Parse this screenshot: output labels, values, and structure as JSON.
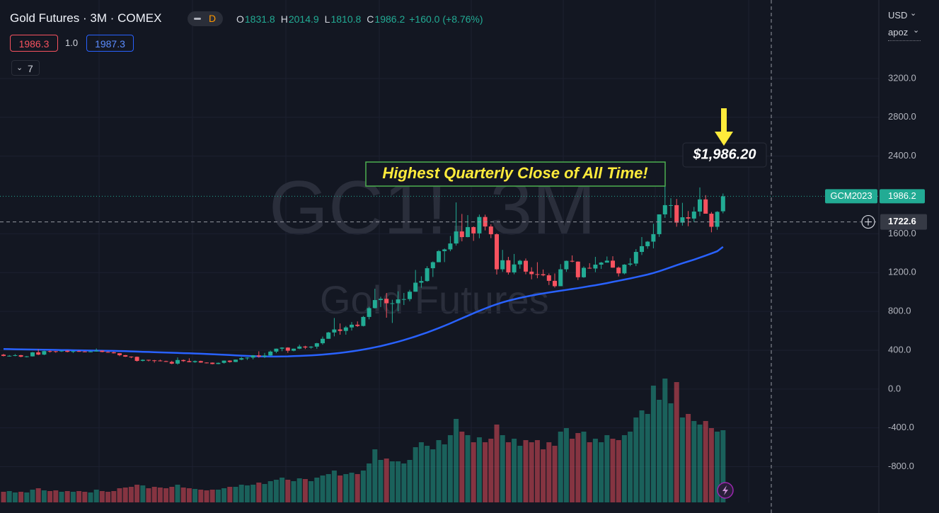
{
  "chart_data": {
    "type": "candlestick",
    "title": "Gold Futures · 3M · COMEX",
    "interval_badge": "D",
    "ohlc_labels": [
      "O",
      "H",
      "L",
      "C"
    ],
    "change": "+160.0 (+8.76%)",
    "bid": "1986.3",
    "spread": "1.0",
    "ask": "1987.3",
    "indicators_count": "7",
    "currency": "USD",
    "scale_mode": "apoz",
    "watermark": "GC1!, 3M",
    "watermark_subtitle": "Gold Futures",
    "annotation": "Highest Quarterly Close of All Time!",
    "price_callout": "$1,986.20",
    "symbol_label": "GCM2023",
    "crosshair": 1722.6,
    "up_color": "#22ab94",
    "down_color": "#f7525f",
    "ma_color": "#2962ff",
    "ylim": [
      -1168,
      4009
    ],
    "yticks": [
      {
        "value": 3200,
        "label": "3200.0"
      },
      {
        "value": 2800,
        "label": "2800.0"
      },
      {
        "value": 2400,
        "label": "2400.0"
      },
      {
        "value": 1600,
        "label": "1600.0"
      },
      {
        "value": 1200,
        "label": "1200.0"
      },
      {
        "value": 800,
        "label": "800.0"
      },
      {
        "value": 400,
        "label": "400.0"
      },
      {
        "value": 0,
        "label": "0.0"
      },
      {
        "value": -400,
        "label": "-400.0"
      },
      {
        "value": -800,
        "label": "-800.0"
      }
    ],
    "grid": true,
    "ohlc": [
      [
        354,
        362,
        336,
        341
      ],
      [
        341,
        350,
        334,
        343
      ],
      [
        343,
        360,
        338,
        349
      ],
      [
        349,
        352,
        328,
        333
      ],
      [
        333,
        340,
        326,
        337
      ],
      [
        337,
        382,
        335,
        378
      ],
      [
        378,
        409,
        350,
        355
      ],
      [
        355,
        395,
        349,
        391
      ],
      [
        391,
        398,
        376,
        390
      ],
      [
        390,
        392,
        374,
        388
      ],
      [
        388,
        397,
        382,
        395
      ],
      [
        395,
        398,
        378,
        383
      ],
      [
        383,
        394,
        372,
        391
      ],
      [
        391,
        396,
        383,
        387
      ],
      [
        387,
        391,
        381,
        384
      ],
      [
        384,
        394,
        380,
        387
      ],
      [
        387,
        418,
        386,
        396
      ],
      [
        396,
        397,
        379,
        382
      ],
      [
        382,
        388,
        376,
        379
      ],
      [
        379,
        385,
        366,
        369
      ],
      [
        369,
        370,
        339,
        349
      ],
      [
        349,
        351,
        331,
        334
      ],
      [
        334,
        336,
        318,
        332
      ],
      [
        332,
        335,
        283,
        290
      ],
      [
        290,
        306,
        285,
        301
      ],
      [
        301,
        302,
        285,
        296
      ],
      [
        296,
        300,
        272,
        294
      ],
      [
        294,
        303,
        285,
        288
      ],
      [
        288,
        292,
        279,
        280
      ],
      [
        280,
        291,
        256,
        262
      ],
      [
        262,
        326,
        252,
        299
      ],
      [
        299,
        305,
        280,
        288
      ],
      [
        288,
        317,
        276,
        277
      ],
      [
        277,
        294,
        270,
        288
      ],
      [
        288,
        292,
        271,
        273
      ],
      [
        273,
        276,
        264,
        272
      ],
      [
        272,
        274,
        255,
        258
      ],
      [
        258,
        273,
        256,
        270
      ],
      [
        270,
        294,
        262,
        293
      ],
      [
        293,
        296,
        272,
        279
      ],
      [
        279,
        305,
        277,
        303
      ],
      [
        303,
        330,
        297,
        318
      ],
      [
        318,
        327,
        300,
        324
      ],
      [
        324,
        350,
        306,
        347
      ],
      [
        347,
        389,
        323,
        335
      ],
      [
        335,
        372,
        320,
        346
      ],
      [
        346,
        396,
        342,
        386
      ],
      [
        386,
        417,
        370,
        416
      ],
      [
        416,
        430,
        390,
        427
      ],
      [
        427,
        431,
        373,
        395
      ],
      [
        395,
        417,
        389,
        416
      ],
      [
        416,
        457,
        411,
        438
      ],
      [
        438,
        446,
        412,
        428
      ],
      [
        428,
        442,
        416,
        437
      ],
      [
        437,
        476,
        415,
        472
      ],
      [
        472,
        541,
        457,
        518
      ],
      [
        518,
        589,
        518,
        583
      ],
      [
        583,
        732,
        543,
        614
      ],
      [
        614,
        676,
        560,
        599
      ],
      [
        599,
        650,
        560,
        635
      ],
      [
        635,
        690,
        603,
        663
      ],
      [
        663,
        697,
        640,
        650
      ],
      [
        650,
        753,
        645,
        743
      ],
      [
        743,
        848,
        718,
        834
      ],
      [
        834,
        1033,
        830,
        917
      ],
      [
        917,
        951,
        845,
        930
      ],
      [
        930,
        990,
        735,
        884
      ],
      [
        884,
        920,
        681,
        884
      ],
      [
        884,
        1007,
        801,
        924
      ],
      [
        924,
        990,
        866,
        927
      ],
      [
        927,
        1022,
        905,
        1003
      ],
      [
        1003,
        1227,
        1003,
        1096
      ],
      [
        1096,
        1162,
        1044,
        1113
      ],
      [
        1113,
        1266,
        1106,
        1245
      ],
      [
        1245,
        1315,
        1155,
        1307
      ],
      [
        1307,
        1431,
        1307,
        1421
      ],
      [
        1421,
        1448,
        1308,
        1439
      ],
      [
        1439,
        1577,
        1420,
        1500
      ],
      [
        1500,
        1923,
        1478,
        1624
      ],
      [
        1624,
        1804,
        1522,
        1566
      ],
      [
        1566,
        1792,
        1564,
        1669
      ],
      [
        1669,
        1676,
        1527,
        1604
      ],
      [
        1604,
        1798,
        1554,
        1773
      ],
      [
        1773,
        1797,
        1635,
        1675
      ],
      [
        1675,
        1697,
        1555,
        1595
      ],
      [
        1595,
        1605,
        1180,
        1234
      ],
      [
        1234,
        1434,
        1208,
        1327
      ],
      [
        1327,
        1362,
        1180,
        1202
      ],
      [
        1202,
        1392,
        1183,
        1284
      ],
      [
        1284,
        1332,
        1240,
        1322
      ],
      [
        1322,
        1345,
        1183,
        1210
      ],
      [
        1210,
        1255,
        1131,
        1184
      ],
      [
        1184,
        1307,
        1142,
        1183
      ],
      [
        1183,
        1232,
        1162,
        1172
      ],
      [
        1172,
        1191,
        1072,
        1115
      ],
      [
        1115,
        1191,
        1046,
        1060
      ],
      [
        1060,
        1287,
        1061,
        1234
      ],
      [
        1234,
        1324,
        1208,
        1321
      ],
      [
        1321,
        1377,
        1306,
        1313
      ],
      [
        1313,
        1316,
        1124,
        1152
      ],
      [
        1152,
        1264,
        1146,
        1249
      ],
      [
        1249,
        1297,
        1240,
        1242
      ],
      [
        1242,
        1362,
        1204,
        1282
      ],
      [
        1282,
        1310,
        1238,
        1303
      ],
      [
        1303,
        1366,
        1303,
        1323
      ],
      [
        1323,
        1369,
        1250,
        1251
      ],
      [
        1251,
        1262,
        1160,
        1192
      ],
      [
        1192,
        1287,
        1182,
        1282
      ],
      [
        1282,
        1349,
        1266,
        1293
      ],
      [
        1293,
        1442,
        1267,
        1413
      ],
      [
        1413,
        1566,
        1381,
        1472
      ],
      [
        1472,
        1525,
        1446,
        1519
      ],
      [
        1519,
        1703,
        1450,
        1596
      ],
      [
        1596,
        1800,
        1568,
        1800
      ],
      [
        1800,
        2089,
        1764,
        1895
      ],
      [
        1895,
        1966,
        1764,
        1895
      ],
      [
        1895,
        1959,
        1673,
        1715
      ],
      [
        1715,
        1919,
        1684,
        1770
      ],
      [
        1770,
        1834,
        1678,
        1757
      ],
      [
        1757,
        1877,
        1721,
        1829
      ],
      [
        1829,
        2078,
        1781,
        1954
      ],
      [
        1954,
        1998,
        1807,
        1807
      ],
      [
        1807,
        1824,
        1615,
        1672
      ],
      [
        1672,
        1833,
        1641,
        1826
      ],
      [
        1831.8,
        2014.9,
        1810.8,
        1986.2
      ]
    ],
    "volume": [
      15,
      16,
      14,
      15,
      14,
      18,
      20,
      17,
      16,
      17,
      15,
      16,
      15,
      16,
      15,
      14,
      18,
      16,
      15,
      16,
      20,
      21,
      22,
      25,
      24,
      20,
      22,
      21,
      20,
      22,
      25,
      21,
      20,
      19,
      18,
      17,
      18,
      18,
      20,
      22,
      22,
      25,
      24,
      25,
      28,
      26,
      30,
      32,
      35,
      32,
      30,
      34,
      33,
      30,
      35,
      38,
      40,
      45,
      38,
      40,
      42,
      40,
      45,
      55,
      75,
      60,
      62,
      58,
      58,
      55,
      60,
      78,
      85,
      80,
      75,
      88,
      82,
      95,
      118,
      100,
      95,
      85,
      92,
      85,
      90,
      110,
      95,
      85,
      90,
      80,
      88,
      85,
      88,
      75,
      85,
      80,
      100,
      105,
      90,
      98,
      100,
      85,
      90,
      85,
      95,
      90,
      88,
      95,
      100,
      120,
      130,
      125,
      165,
      145,
      175,
      140,
      170,
      120,
      125,
      115,
      110,
      115,
      105,
      100,
      102
    ],
    "ma": [
      412,
      411,
      410,
      409,
      408,
      407,
      406,
      405,
      404,
      403,
      402,
      401,
      400,
      399,
      398,
      397,
      396,
      395,
      394,
      393,
      392,
      390,
      388,
      386,
      384,
      382,
      380,
      378,
      376,
      374,
      372,
      370,
      368,
      366,
      364,
      362,
      359,
      356,
      353,
      350,
      347,
      344,
      341,
      339,
      337,
      336,
      335,
      335,
      336,
      337,
      339,
      341,
      344,
      347,
      351,
      355,
      360,
      366,
      373,
      380,
      388,
      397,
      407,
      418,
      430,
      443,
      457,
      472,
      488,
      505,
      523,
      542,
      562,
      583,
      605,
      628,
      652,
      677,
      703,
      729,
      755,
      781,
      806,
      830,
      853,
      874,
      893,
      910,
      925,
      939,
      952,
      964,
      975,
      985,
      995,
      1004,
      1013,
      1022,
      1031,
      1040,
      1050,
      1060,
      1070,
      1081,
      1092,
      1104,
      1116,
      1128,
      1140,
      1153,
      1166,
      1180,
      1196,
      1214,
      1234,
      1255,
      1276,
      1296,
      1315,
      1334,
      1354,
      1375,
      1397,
      1420,
      1465
    ]
  }
}
